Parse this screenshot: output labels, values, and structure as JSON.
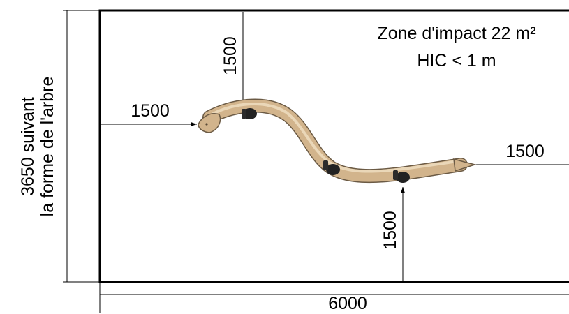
{
  "impact_zone": {
    "line1": "Zone d'impact 22 m²",
    "line2": "HIC < 1 m"
  },
  "dimensions": {
    "total_width": "6000",
    "height_line1": "3650 suivant",
    "height_line2": "la forme de l'arbre",
    "top_clearance": "1500",
    "left_clearance": "1500",
    "right_clearance": "1500",
    "bottom_clearance": "1500"
  },
  "colors": {
    "log_fill": "#d2b48c",
    "log_stroke": "#6b5a44",
    "outline": "#000000",
    "dimension_line": "#000000"
  }
}
